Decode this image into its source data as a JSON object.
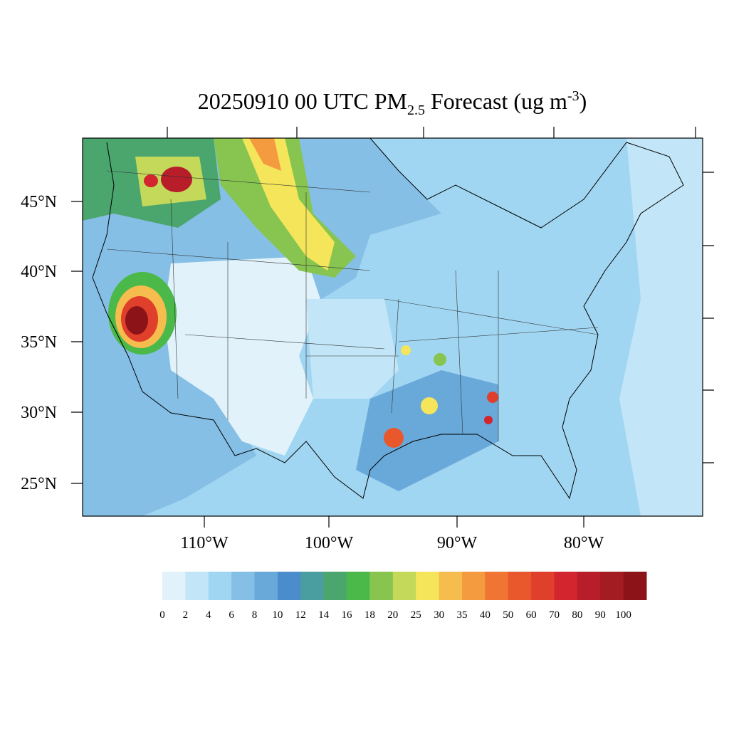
{
  "title": {
    "main": "20250910 00 UTC PM",
    "sub": "2.5",
    "rest": " Forecast (ug m",
    "sup": "-3",
    "end": ")"
  },
  "map": {
    "lat_labels": [
      "45°N",
      "40°N",
      "35°N",
      "30°N",
      "25°N"
    ],
    "lon_labels": [
      "110°W",
      "100°W",
      "90°W",
      "80°W"
    ]
  },
  "colorbar": {
    "labels": [
      0,
      2,
      4,
      6,
      8,
      10,
      12,
      14,
      16,
      18,
      20,
      25,
      30,
      35,
      40,
      50,
      60,
      70,
      80,
      90,
      100
    ],
    "colors": [
      "#e1f2fb",
      "#c2e5f7",
      "#a1d6f2",
      "#85bfe6",
      "#69a9d9",
      "#4a8ccc",
      "#4b9ea0",
      "#4aa66d",
      "#4bb84a",
      "#87c550",
      "#c4d95a",
      "#f4e55a",
      "#f6bd4e",
      "#f49a3f",
      "#f07433",
      "#e9572c",
      "#e03f2b",
      "#d2252e",
      "#b81d2a",
      "#a41b22",
      "#8c1419"
    ]
  }
}
